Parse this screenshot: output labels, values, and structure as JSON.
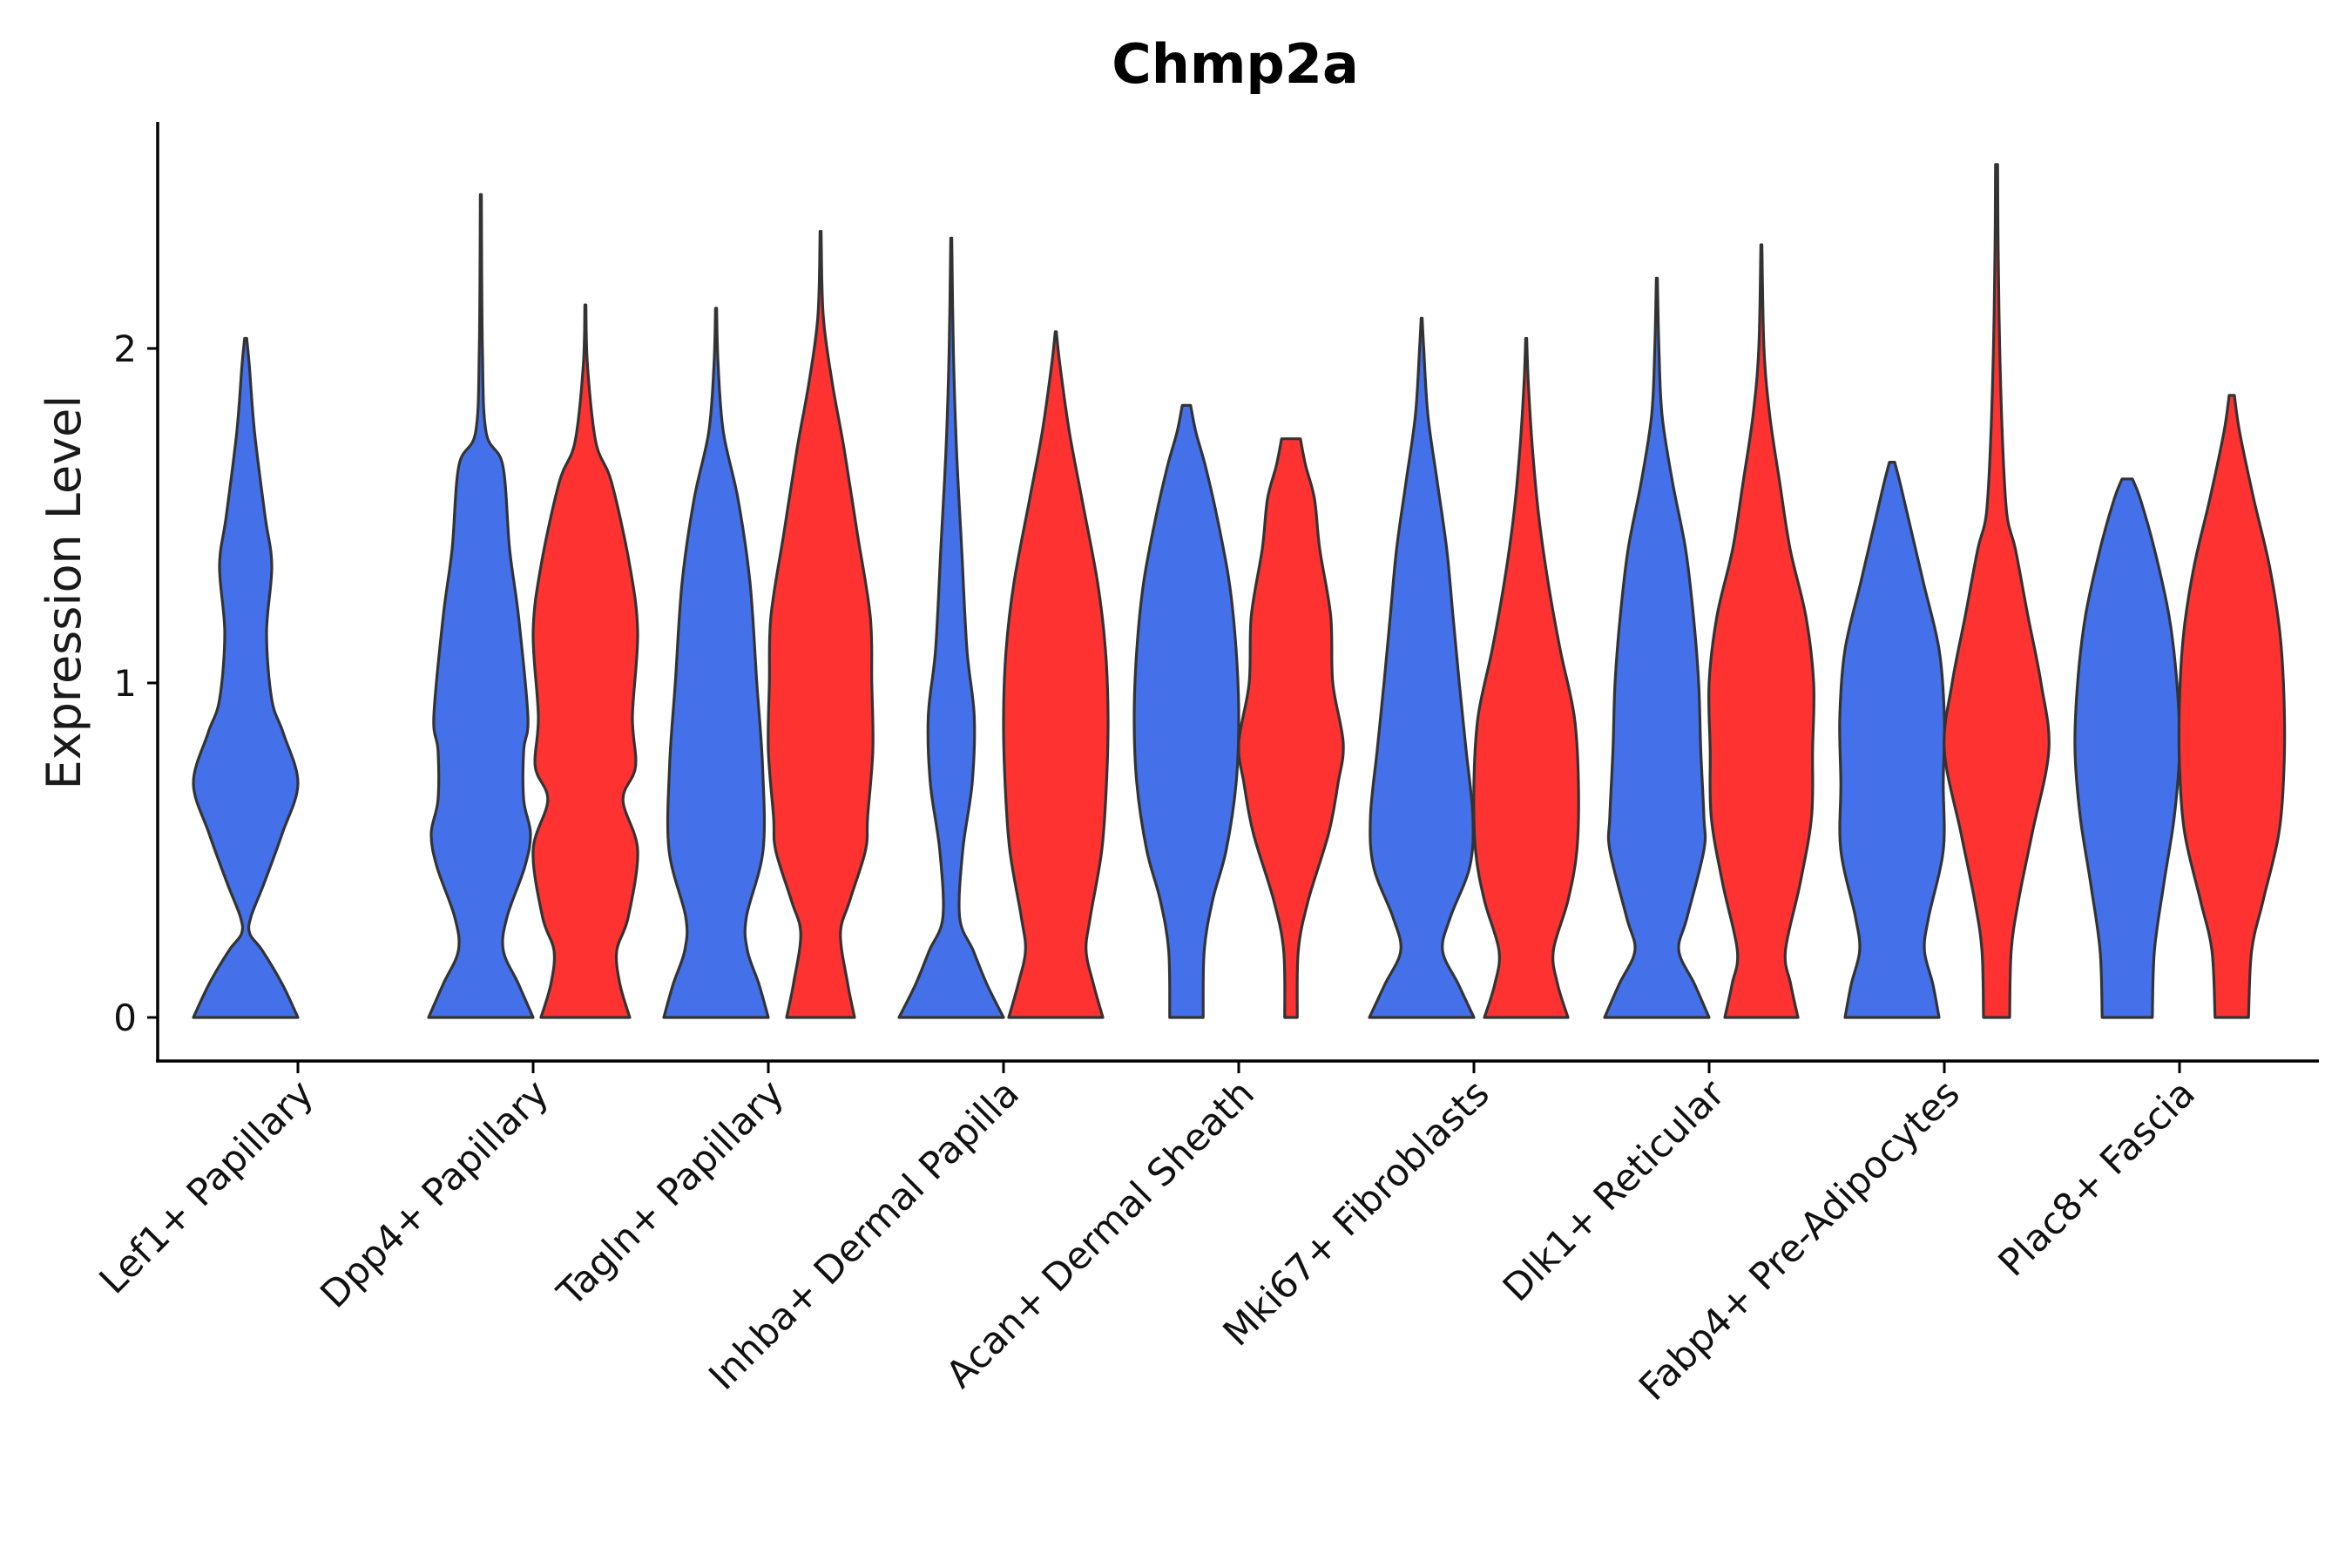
{
  "chart_data": {
    "type": "violin",
    "title": "Chmp2a",
    "xlabel": "",
    "ylabel": "Expression Level",
    "ylim": [
      -0.13,
      2.68
    ],
    "yticks": [
      0,
      1,
      2
    ],
    "colors": {
      "group_a": "#4470EA",
      "group_b": "#FF3232",
      "outline": "#333333"
    },
    "categories": [
      "Lef1+ Papillary",
      "Dpp4+ Papillary",
      "Tagln+ Papillary",
      "Inhba+ Dermal Papilla",
      "Acan+ Dermal Sheath",
      "Mki67+ Fibroblasts",
      "Dlk1+ Reticular",
      "Fabp4+ Pre-Adipocytes",
      "Plac8+ Fascia"
    ],
    "violins": [
      {
        "category": 0,
        "group": "a",
        "max": 2.03,
        "profile": [
          [
            0,
            1.0
          ],
          [
            0.1,
            0.7
          ],
          [
            0.2,
            0.32
          ],
          [
            0.25,
            0.08
          ],
          [
            0.3,
            0.1
          ],
          [
            0.4,
            0.35
          ],
          [
            0.55,
            0.7
          ],
          [
            0.7,
            1.0
          ],
          [
            0.85,
            0.72
          ],
          [
            0.95,
            0.5
          ],
          [
            1.15,
            0.4
          ],
          [
            1.35,
            0.5
          ],
          [
            1.5,
            0.37
          ],
          [
            1.75,
            0.17
          ],
          [
            1.95,
            0.07
          ],
          [
            2.03,
            0.02
          ]
        ]
      },
      {
        "category": 1,
        "group": "a",
        "max": 2.46,
        "profile": [
          [
            0,
            1.0
          ],
          [
            0.1,
            0.72
          ],
          [
            0.2,
            0.43
          ],
          [
            0.3,
            0.5
          ],
          [
            0.45,
            0.84
          ],
          [
            0.55,
            0.95
          ],
          [
            0.65,
            0.82
          ],
          [
            0.8,
            0.82
          ],
          [
            0.9,
            0.9
          ],
          [
            1.2,
            0.72
          ],
          [
            1.4,
            0.55
          ],
          [
            1.65,
            0.42
          ],
          [
            1.75,
            0.1
          ],
          [
            2.0,
            0.03
          ],
          [
            2.46,
            0.01
          ]
        ]
      },
      {
        "category": 1,
        "group": "b",
        "max": 2.13,
        "profile": [
          [
            0,
            0.85
          ],
          [
            0.1,
            0.66
          ],
          [
            0.2,
            0.6
          ],
          [
            0.3,
            0.82
          ],
          [
            0.5,
            1.0
          ],
          [
            0.65,
            0.72
          ],
          [
            0.75,
            0.96
          ],
          [
            0.9,
            0.9
          ],
          [
            1.15,
            1.0
          ],
          [
            1.35,
            0.85
          ],
          [
            1.6,
            0.5
          ],
          [
            1.72,
            0.2
          ],
          [
            1.95,
            0.04
          ],
          [
            2.13,
            0.01
          ]
        ]
      },
      {
        "category": 2,
        "group": "a",
        "max": 2.12,
        "profile": [
          [
            0,
            1.0
          ],
          [
            0.1,
            0.82
          ],
          [
            0.2,
            0.6
          ],
          [
            0.3,
            0.58
          ],
          [
            0.5,
            0.9
          ],
          [
            0.75,
            0.89
          ],
          [
            1.0,
            0.78
          ],
          [
            1.3,
            0.65
          ],
          [
            1.55,
            0.42
          ],
          [
            1.75,
            0.14
          ],
          [
            1.95,
            0.04
          ],
          [
            2.12,
            0.01
          ]
        ]
      },
      {
        "category": 2,
        "group": "b",
        "max": 2.35,
        "profile": [
          [
            0,
            0.65
          ],
          [
            0.1,
            0.52
          ],
          [
            0.25,
            0.38
          ],
          [
            0.35,
            0.56
          ],
          [
            0.5,
            0.86
          ],
          [
            0.6,
            0.9
          ],
          [
            0.8,
            1.0
          ],
          [
            1.0,
            0.98
          ],
          [
            1.2,
            0.95
          ],
          [
            1.45,
            0.7
          ],
          [
            1.7,
            0.45
          ],
          [
            1.9,
            0.22
          ],
          [
            2.1,
            0.05
          ],
          [
            2.35,
            0.01
          ]
        ]
      },
      {
        "category": 3,
        "group": "a",
        "max": 2.33,
        "profile": [
          [
            0,
            1.0
          ],
          [
            0.1,
            0.68
          ],
          [
            0.2,
            0.42
          ],
          [
            0.3,
            0.16
          ],
          [
            0.5,
            0.22
          ],
          [
            0.7,
            0.4
          ],
          [
            0.9,
            0.44
          ],
          [
            1.1,
            0.3
          ],
          [
            1.4,
            0.2
          ],
          [
            1.7,
            0.1
          ],
          [
            2.0,
            0.04
          ],
          [
            2.33,
            0.01
          ]
        ]
      },
      {
        "category": 3,
        "group": "b",
        "max": 2.05,
        "profile": [
          [
            0,
            0.9
          ],
          [
            0.1,
            0.72
          ],
          [
            0.2,
            0.58
          ],
          [
            0.3,
            0.66
          ],
          [
            0.5,
            0.88
          ],
          [
            0.7,
            0.97
          ],
          [
            0.9,
            1.0
          ],
          [
            1.1,
            0.95
          ],
          [
            1.3,
            0.8
          ],
          [
            1.55,
            0.5
          ],
          [
            1.75,
            0.26
          ],
          [
            1.95,
            0.08
          ],
          [
            2.05,
            0.01
          ]
        ]
      },
      {
        "category": 4,
        "group": "a",
        "max": 1.83,
        "profile": [
          [
            0,
            0.32
          ],
          [
            0.2,
            0.34
          ],
          [
            0.35,
            0.5
          ],
          [
            0.5,
            0.76
          ],
          [
            0.7,
            0.95
          ],
          [
            0.9,
            1.0
          ],
          [
            1.1,
            0.95
          ],
          [
            1.3,
            0.82
          ],
          [
            1.5,
            0.58
          ],
          [
            1.65,
            0.36
          ],
          [
            1.75,
            0.18
          ],
          [
            1.83,
            0.08
          ]
        ]
      },
      {
        "category": 4,
        "group": "b",
        "max": 1.73,
        "profile": [
          [
            0,
            0.12
          ],
          [
            0.2,
            0.14
          ],
          [
            0.35,
            0.33
          ],
          [
            0.55,
            0.72
          ],
          [
            0.7,
            0.9
          ],
          [
            0.82,
            1.0
          ],
          [
            1.0,
            0.8
          ],
          [
            1.2,
            0.76
          ],
          [
            1.4,
            0.55
          ],
          [
            1.55,
            0.45
          ],
          [
            1.65,
            0.28
          ],
          [
            1.73,
            0.18
          ]
        ]
      },
      {
        "category": 5,
        "group": "a",
        "max": 2.09,
        "profile": [
          [
            0,
            1.0
          ],
          [
            0.1,
            0.7
          ],
          [
            0.2,
            0.4
          ],
          [
            0.3,
            0.55
          ],
          [
            0.45,
            0.92
          ],
          [
            0.6,
            0.98
          ],
          [
            0.8,
            0.85
          ],
          [
            1.0,
            0.72
          ],
          [
            1.2,
            0.6
          ],
          [
            1.4,
            0.48
          ],
          [
            1.6,
            0.3
          ],
          [
            1.8,
            0.12
          ],
          [
            2.0,
            0.04
          ],
          [
            2.09,
            0.01
          ]
        ]
      },
      {
        "category": 5,
        "group": "b",
        "max": 2.03,
        "profile": [
          [
            0,
            0.8
          ],
          [
            0.1,
            0.6
          ],
          [
            0.2,
            0.52
          ],
          [
            0.35,
            0.8
          ],
          [
            0.5,
            0.97
          ],
          [
            0.7,
            1.0
          ],
          [
            0.9,
            0.92
          ],
          [
            1.1,
            0.65
          ],
          [
            1.3,
            0.42
          ],
          [
            1.5,
            0.24
          ],
          [
            1.7,
            0.12
          ],
          [
            1.9,
            0.04
          ],
          [
            2.03,
            0.01
          ]
        ]
      },
      {
        "category": 6,
        "group": "a",
        "max": 2.21,
        "profile": [
          [
            0,
            1.0
          ],
          [
            0.1,
            0.72
          ],
          [
            0.2,
            0.42
          ],
          [
            0.3,
            0.58
          ],
          [
            0.5,
            0.9
          ],
          [
            0.6,
            0.9
          ],
          [
            0.8,
            0.84
          ],
          [
            1.0,
            0.8
          ],
          [
            1.2,
            0.7
          ],
          [
            1.4,
            0.55
          ],
          [
            1.6,
            0.3
          ],
          [
            1.8,
            0.1
          ],
          [
            2.0,
            0.04
          ],
          [
            2.21,
            0.01
          ]
        ]
      },
      {
        "category": 6,
        "group": "b",
        "max": 2.31,
        "profile": [
          [
            0,
            0.7
          ],
          [
            0.1,
            0.56
          ],
          [
            0.2,
            0.46
          ],
          [
            0.4,
            0.74
          ],
          [
            0.6,
            0.96
          ],
          [
            0.8,
            0.98
          ],
          [
            1.0,
            1.0
          ],
          [
            1.2,
            0.85
          ],
          [
            1.4,
            0.55
          ],
          [
            1.6,
            0.35
          ],
          [
            1.8,
            0.16
          ],
          [
            2.0,
            0.05
          ],
          [
            2.31,
            0.01
          ]
        ]
      },
      {
        "category": 7,
        "group": "a",
        "max": 1.66,
        "profile": [
          [
            0,
            0.9
          ],
          [
            0.1,
            0.78
          ],
          [
            0.2,
            0.62
          ],
          [
            0.3,
            0.7
          ],
          [
            0.5,
            0.98
          ],
          [
            0.7,
            0.98
          ],
          [
            0.9,
            1.0
          ],
          [
            1.1,
            0.9
          ],
          [
            1.3,
            0.6
          ],
          [
            1.5,
            0.3
          ],
          [
            1.6,
            0.15
          ],
          [
            1.66,
            0.05
          ]
        ]
      },
      {
        "category": 7,
        "group": "b",
        "max": 2.55,
        "profile": [
          [
            0,
            0.25
          ],
          [
            0.2,
            0.28
          ],
          [
            0.35,
            0.42
          ],
          [
            0.55,
            0.68
          ],
          [
            0.8,
            1.0
          ],
          [
            1.0,
            0.85
          ],
          [
            1.2,
            0.6
          ],
          [
            1.4,
            0.36
          ],
          [
            1.5,
            0.2
          ],
          [
            1.7,
            0.12
          ],
          [
            2.0,
            0.06
          ],
          [
            2.3,
            0.03
          ],
          [
            2.55,
            0.02
          ]
        ]
      },
      {
        "category": 8,
        "group": "a",
        "max": 1.61,
        "profile": [
          [
            0,
            0.48
          ],
          [
            0.2,
            0.52
          ],
          [
            0.4,
            0.7
          ],
          [
            0.6,
            0.9
          ],
          [
            0.8,
            1.0
          ],
          [
            1.0,
            0.95
          ],
          [
            1.2,
            0.8
          ],
          [
            1.4,
            0.52
          ],
          [
            1.55,
            0.25
          ],
          [
            1.61,
            0.1
          ]
        ]
      },
      {
        "category": 8,
        "group": "b",
        "max": 1.86,
        "profile": [
          [
            0,
            0.32
          ],
          [
            0.2,
            0.38
          ],
          [
            0.35,
            0.6
          ],
          [
            0.55,
            0.9
          ],
          [
            0.75,
            1.0
          ],
          [
            0.95,
            1.0
          ],
          [
            1.15,
            0.92
          ],
          [
            1.35,
            0.72
          ],
          [
            1.55,
            0.42
          ],
          [
            1.75,
            0.15
          ],
          [
            1.86,
            0.05
          ]
        ]
      }
    ]
  }
}
